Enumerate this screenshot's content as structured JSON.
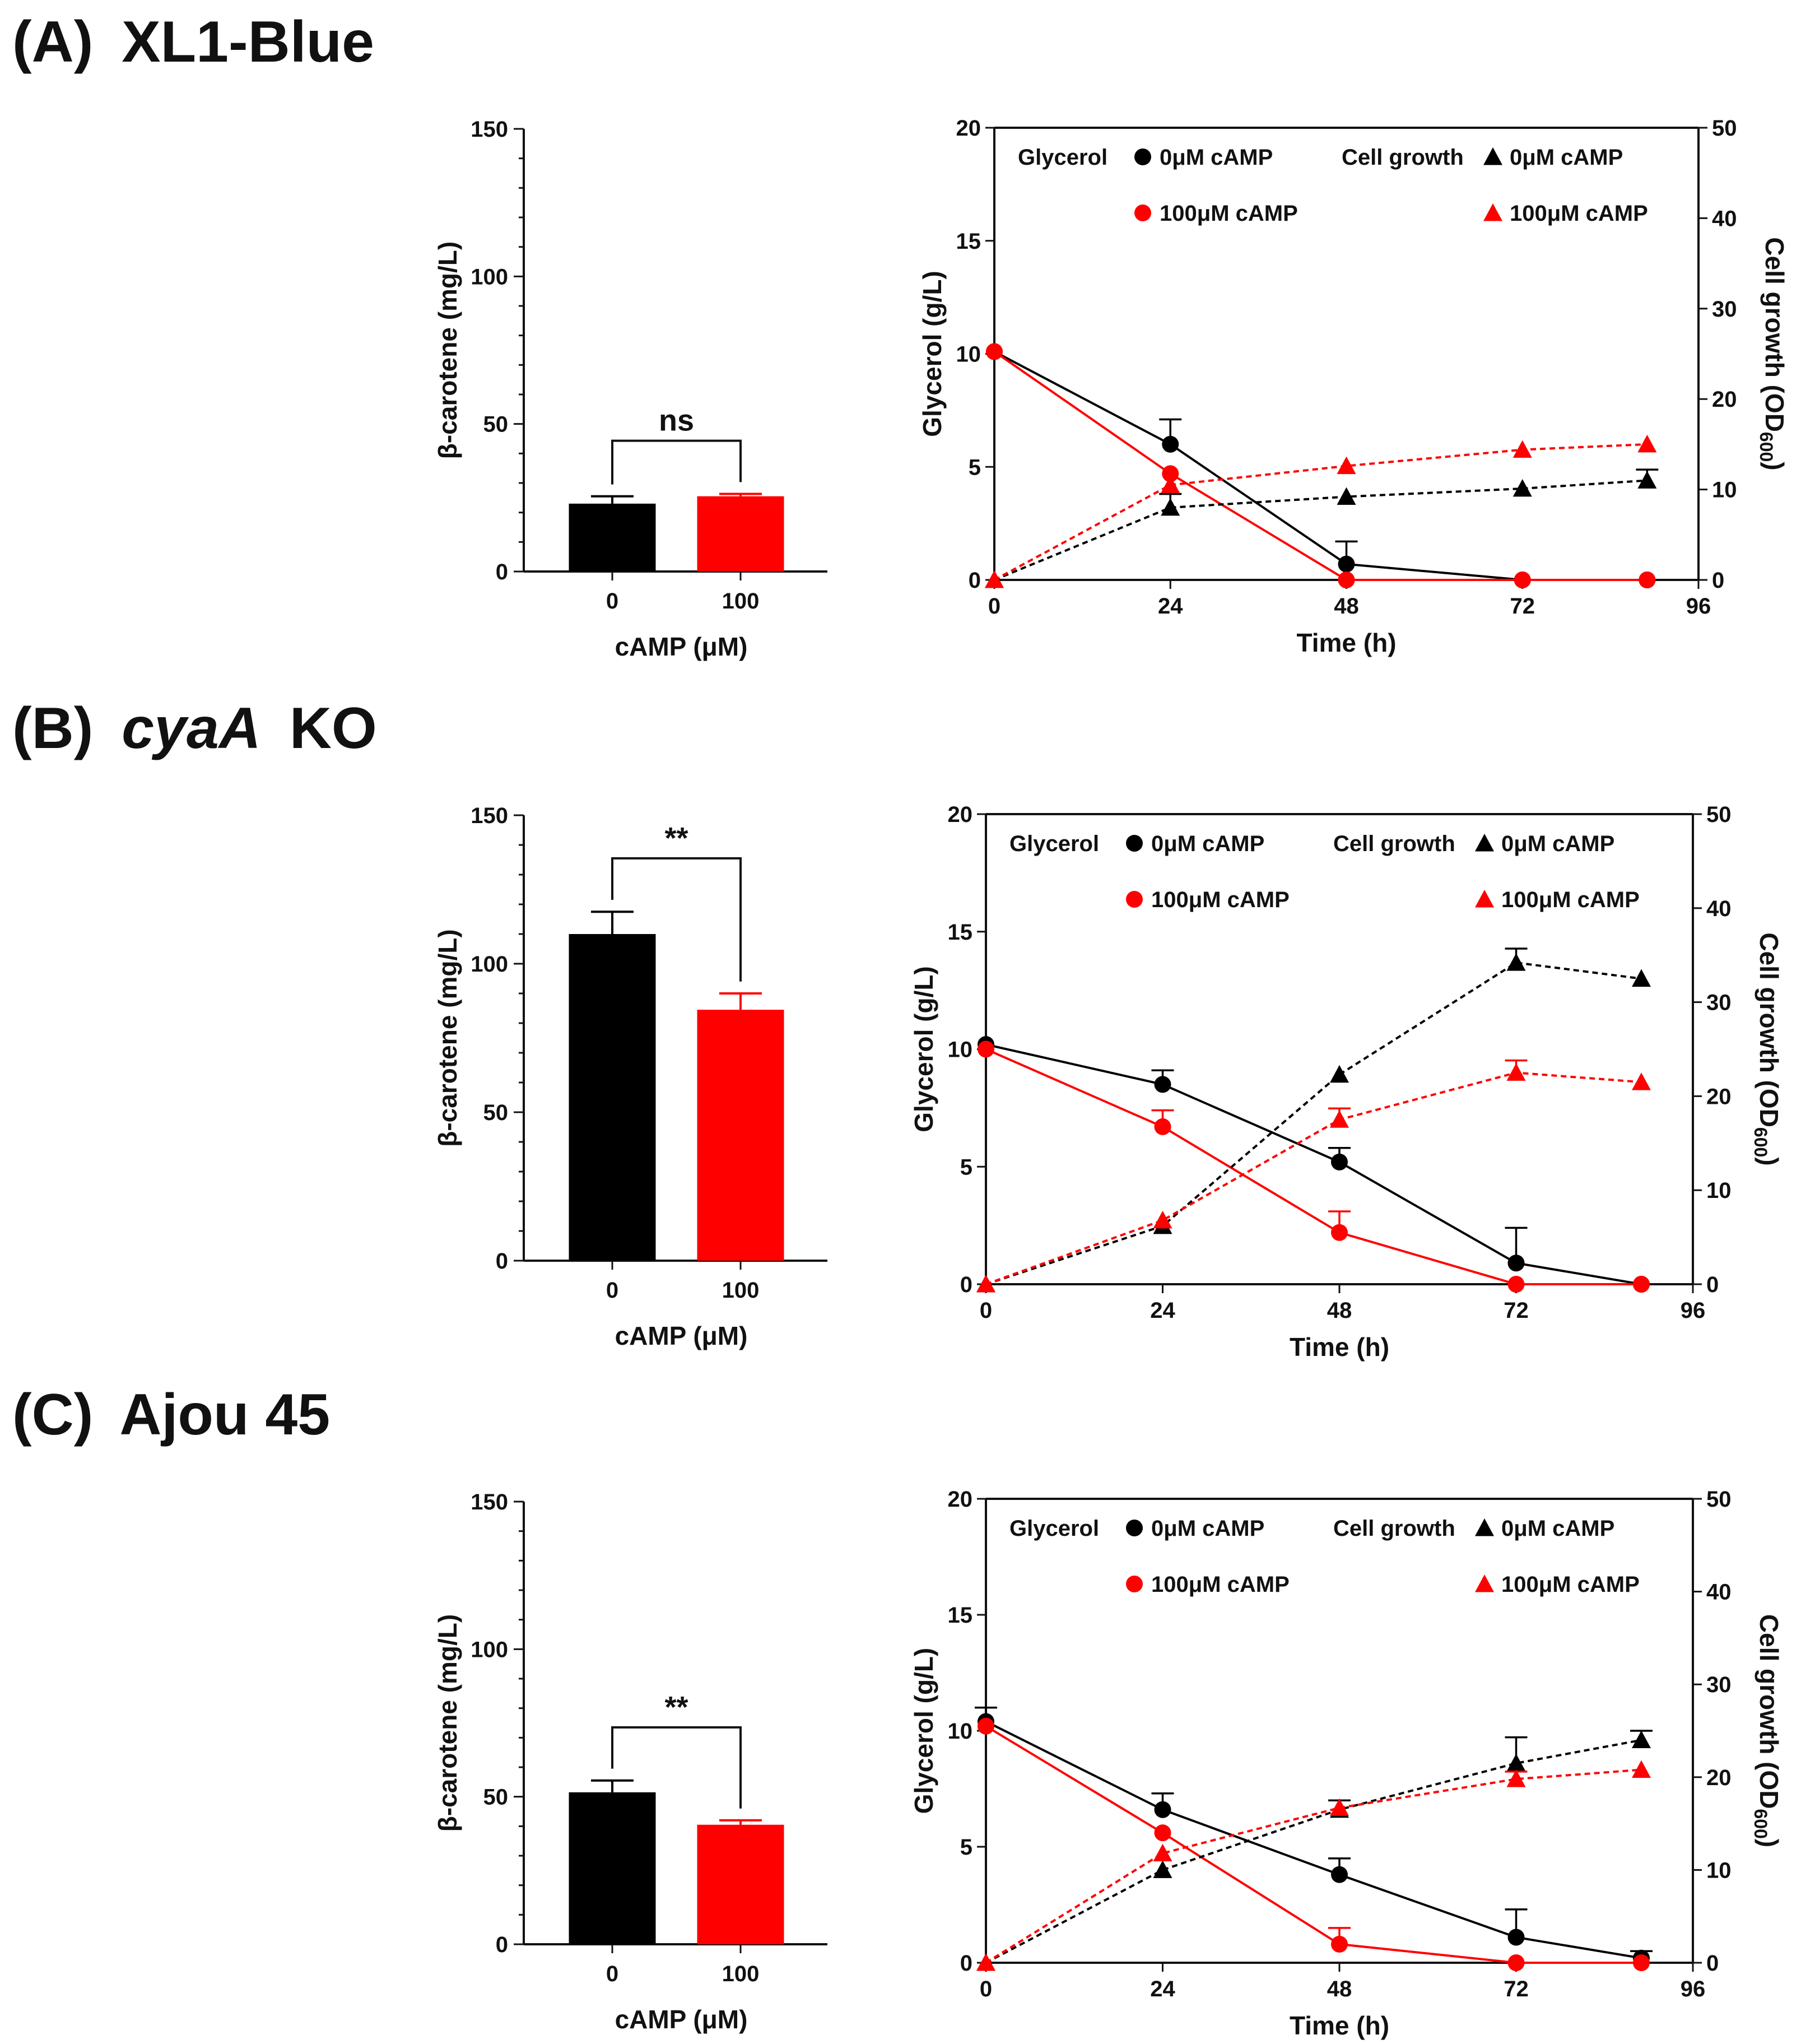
{
  "panels": [
    {
      "label": "(A)",
      "strain": "XL1-Blue",
      "strain_italic": false
    },
    {
      "label": "(B)",
      "strain": "cyaA",
      "strain_suffix": "KO",
      "strain_italic": true
    },
    {
      "label": "(C)",
      "strain": "Ajou 45",
      "strain_italic": false
    }
  ],
  "colors": {
    "control": "#000000",
    "camp": "#ff0000"
  },
  "chart_data": [
    {
      "panel": "(A)",
      "type": "bar",
      "categories": [
        "0",
        "100"
      ],
      "values": [
        23,
        25.5
      ],
      "errors": [
        2.5,
        0.8
      ],
      "bar_colors": [
        "#000000",
        "#ff0000"
      ],
      "xlabel": "cAMP (μM)",
      "ylabel": "β-carotene (mg/L)",
      "ylim": [
        0,
        150
      ],
      "yticks": [
        "0",
        "50",
        "100",
        "150"
      ],
      "significance": "ns"
    },
    {
      "panel": "(A)",
      "type": "line",
      "x": [
        0,
        24,
        48,
        72,
        89
      ],
      "xlabel": "Time (h)",
      "xlim": [
        0,
        96
      ],
      "xticks": [
        "0",
        "24",
        "48",
        "72",
        "96"
      ],
      "ylabel": "Glycerol (g/L)",
      "ylim": [
        0,
        20
      ],
      "yticks": [
        "0",
        "5",
        "10",
        "15",
        "20"
      ],
      "y2label": "Cell growth (OD600)",
      "y2label_main": "Cell growth (OD",
      "y2label_sub": "600",
      "y2label_end": ")",
      "y2lim": [
        0,
        50
      ],
      "y2ticks": [
        "0",
        "10",
        "20",
        "30",
        "40",
        "50"
      ],
      "legend": {
        "glycerol_title": "Glycerol",
        "growth_title": "Cell growth",
        "entry_0": "0μM cAMP",
        "entry_100": "100μM cAMP"
      },
      "series": [
        {
          "name": "0μM cAMP",
          "kind": "glycerol",
          "values": [
            10.1,
            6.0,
            0.7,
            0,
            0
          ],
          "errors": [
            0,
            1.1,
            1.0,
            0,
            0
          ]
        },
        {
          "name": "100μM cAMP",
          "kind": "glycerol",
          "values": [
            10.1,
            4.7,
            0,
            0,
            0
          ],
          "errors": [
            0,
            0,
            0,
            0,
            0
          ]
        },
        {
          "name": "0μM cAMP",
          "kind": "growth",
          "values": [
            0,
            8,
            9.2,
            10.1,
            11
          ],
          "errors": [
            0,
            1.5,
            0,
            0,
            1.2
          ]
        },
        {
          "name": "100μM cAMP",
          "kind": "growth",
          "values": [
            0,
            10.5,
            12.6,
            14.4,
            15
          ],
          "errors": [
            0,
            0,
            0,
            0,
            0
          ]
        }
      ]
    },
    {
      "panel": "(B)",
      "type": "bar",
      "categories": [
        "0",
        "100"
      ],
      "values": [
        110,
        84.5
      ],
      "errors": [
        7.5,
        5.5
      ],
      "bar_colors": [
        "#000000",
        "#ff0000"
      ],
      "xlabel": "cAMP (μM)",
      "ylabel": "β-carotene (mg/L)",
      "ylim": [
        0,
        150
      ],
      "yticks": [
        "0",
        "50",
        "100",
        "150"
      ],
      "significance": "**"
    },
    {
      "panel": "(B)",
      "type": "line",
      "x": [
        0,
        24,
        48,
        72,
        89
      ],
      "xlabel": "Time  (h)",
      "xlim": [
        0,
        96
      ],
      "xticks": [
        "0",
        "24",
        "48",
        "72",
        "96"
      ],
      "ylabel": "Glycerol (g/L)",
      "ylim": [
        0,
        20
      ],
      "yticks": [
        "0",
        "5",
        "10",
        "15",
        "20"
      ],
      "y2label": "Cell growth (OD600)",
      "y2label_main": "Cell growth (OD",
      "y2label_sub": "600",
      "y2label_end": ")",
      "y2lim": [
        0,
        50
      ],
      "y2ticks": [
        "0",
        "10",
        "20",
        "30",
        "40",
        "50"
      ],
      "legend": {
        "glycerol_title": "Glycerol",
        "growth_title": "Cell growth",
        "entry_0": "0μM cAMP",
        "entry_100": "100μM cAMP"
      },
      "series": [
        {
          "name": "0μM cAMP",
          "kind": "glycerol",
          "values": [
            10.2,
            8.5,
            5.2,
            0.9,
            0
          ],
          "errors": [
            0,
            0.6,
            0.6,
            1.5,
            0
          ]
        },
        {
          "name": "100μM cAMP",
          "kind": "glycerol",
          "values": [
            10.0,
            6.7,
            2.2,
            0,
            0
          ],
          "errors": [
            0,
            0.7,
            0.9,
            0,
            0
          ]
        },
        {
          "name": "0μM cAMP",
          "kind": "growth",
          "values": [
            0,
            6.2,
            22.3,
            34.2,
            32.5
          ],
          "errors": [
            0,
            0,
            0,
            1.5,
            0
          ]
        },
        {
          "name": "100μM cAMP",
          "kind": "growth",
          "values": [
            0,
            6.8,
            17.5,
            22.5,
            21.5
          ],
          "errors": [
            0,
            0,
            1.2,
            1.3,
            0
          ]
        }
      ]
    },
    {
      "panel": "(C)",
      "type": "bar",
      "categories": [
        "0",
        "100"
      ],
      "values": [
        51.5,
        40.5
      ],
      "errors": [
        4,
        1.5
      ],
      "bar_colors": [
        "#000000",
        "#ff0000"
      ],
      "xlabel": "cAMP (μM)",
      "ylabel": "β-carotene (mg/L)",
      "ylim": [
        0,
        150
      ],
      "yticks": [
        "0",
        "50",
        "100",
        "150"
      ],
      "significance": "**"
    },
    {
      "panel": "(C)",
      "type": "line",
      "x": [
        0,
        24,
        48,
        72,
        89
      ],
      "xlabel": "Time  (h)",
      "xlim": [
        0,
        96
      ],
      "xticks": [
        "0",
        "24",
        "48",
        "72",
        "96"
      ],
      "ylabel": "Glycerol (g/L)",
      "ylim": [
        0,
        20
      ],
      "yticks": [
        "0",
        "5",
        "10",
        "15",
        "20"
      ],
      "y2label": "Cell growth (OD600)",
      "y2label_main": "Cell growth (OD",
      "y2label_sub": "600",
      "y2label_end": ")",
      "y2lim": [
        0,
        50
      ],
      "y2ticks": [
        "0",
        "10",
        "20",
        "30",
        "40",
        "50"
      ],
      "legend": {
        "glycerol_title": "Glycerol",
        "growth_title": "Cell growth",
        "entry_0": "0μM cAMP",
        "entry_100": "100μM cAMP"
      },
      "series": [
        {
          "name": "0μM cAMP",
          "kind": "glycerol",
          "values": [
            10.4,
            6.6,
            3.8,
            1.1,
            0.2
          ],
          "errors": [
            0.6,
            0.7,
            0.7,
            1.2,
            0.3
          ]
        },
        {
          "name": "100μM cAMP",
          "kind": "glycerol",
          "values": [
            10.2,
            5.6,
            0.8,
            0,
            0
          ],
          "errors": [
            0,
            0,
            0.7,
            0,
            0
          ]
        },
        {
          "name": "0μM cAMP",
          "kind": "growth",
          "values": [
            0,
            10,
            16.5,
            21.5,
            24
          ],
          "errors": [
            0,
            0,
            1,
            2.8,
            1
          ]
        },
        {
          "name": "100μM cAMP",
          "kind": "growth",
          "values": [
            0,
            11.8,
            16.7,
            19.8,
            20.8
          ],
          "errors": [
            0,
            0,
            0,
            0.8,
            0
          ]
        }
      ]
    }
  ]
}
